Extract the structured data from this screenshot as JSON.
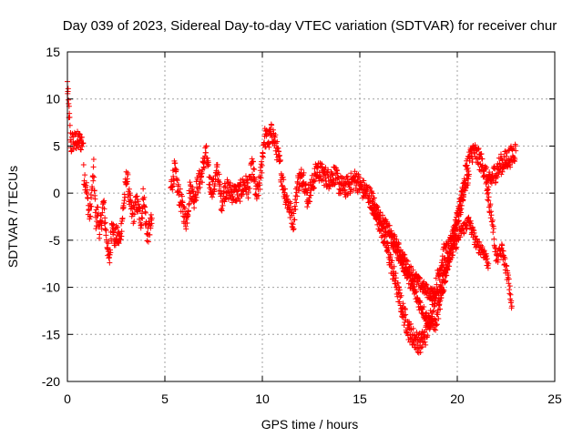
{
  "chart_data": {
    "type": "scatter",
    "title": "Day 039 of 2023, Sidereal Day-to-day VTEC variation (SDTVAR) for receiver chur",
    "xlabel": "GPS time / hours",
    "ylabel": "SDTVAR / TECUs",
    "xlim": [
      0,
      25
    ],
    "ylim": [
      -20,
      15
    ],
    "xticks": [
      0,
      5,
      10,
      15,
      20,
      25
    ],
    "yticks": [
      -20,
      -15,
      -10,
      -5,
      0,
      5,
      10,
      15
    ],
    "grid": true,
    "marker": "+",
    "series": [
      {
        "name": "SDTVAR",
        "color": "#ff0000",
        "anchors": [
          [
            0.0,
            11.5
          ],
          [
            0.05,
            9.5
          ],
          [
            0.1,
            8.0
          ],
          [
            0.15,
            6.0
          ],
          [
            0.2,
            5.0
          ],
          [
            0.25,
            5.5
          ],
          [
            0.3,
            5.5
          ],
          [
            0.8,
            5.5
          ],
          [
            0.85,
            2.0
          ],
          [
            0.95,
            1.0
          ],
          [
            1.05,
            -1.0
          ],
          [
            1.15,
            -2.5
          ],
          [
            1.25,
            0.0
          ],
          [
            1.35,
            2.5
          ],
          [
            1.45,
            -3.0
          ],
          [
            1.55,
            -2.0
          ],
          [
            1.65,
            -4.0
          ],
          [
            1.75,
            -3.0
          ],
          [
            1.85,
            -1.0
          ],
          [
            1.95,
            -3.5
          ],
          [
            2.15,
            -7.5
          ],
          [
            2.3,
            -2.5
          ],
          [
            2.4,
            -5.0
          ],
          [
            2.5,
            -4.5
          ],
          [
            2.7,
            -5.0
          ],
          [
            3.05,
            2.0
          ],
          [
            3.2,
            -1.0
          ],
          [
            3.35,
            -2.5
          ],
          [
            3.55,
            -1.0
          ],
          [
            3.8,
            -3.0
          ],
          [
            3.9,
            0.0
          ],
          [
            4.0,
            -2.5
          ],
          [
            4.1,
            -4.5
          ],
          [
            4.35,
            -3.0
          ],
          [
            5.3,
            0.5
          ],
          [
            5.5,
            2.5
          ],
          [
            5.7,
            0.0
          ],
          [
            5.9,
            -1.5
          ],
          [
            6.1,
            -3.0
          ],
          [
            6.3,
            0.5
          ],
          [
            6.5,
            -0.5
          ],
          [
            6.7,
            1.0
          ],
          [
            6.9,
            2.0
          ],
          [
            7.1,
            4.5
          ],
          [
            7.3,
            1.0
          ],
          [
            7.5,
            0.5
          ],
          [
            7.7,
            2.5
          ],
          [
            7.9,
            -1.0
          ],
          [
            8.1,
            0.5
          ],
          [
            8.5,
            0.0
          ],
          [
            8.8,
            0.0
          ],
          [
            9.1,
            1.0
          ],
          [
            9.3,
            0.5
          ],
          [
            9.5,
            3.0
          ],
          [
            9.7,
            -0.5
          ],
          [
            9.9,
            1.5
          ],
          [
            10.1,
            6.0
          ],
          [
            10.3,
            5.5
          ],
          [
            10.5,
            6.5
          ],
          [
            10.7,
            5.0
          ],
          [
            10.9,
            3.0
          ],
          [
            11.1,
            0.5
          ],
          [
            11.3,
            -1.0
          ],
          [
            11.6,
            -3.0
          ],
          [
            11.8,
            1.0
          ],
          [
            12.1,
            2.0
          ],
          [
            12.3,
            -0.5
          ],
          [
            12.5,
            0.5
          ],
          [
            12.8,
            2.5
          ],
          [
            13.1,
            2.0
          ],
          [
            13.4,
            1.5
          ],
          [
            13.7,
            2.0
          ],
          [
            13.9,
            1.0
          ],
          [
            14.2,
            0.5
          ],
          [
            14.5,
            1.0
          ],
          [
            14.8,
            1.5
          ],
          [
            15.1,
            0.5
          ],
          [
            15.4,
            0.0
          ],
          [
            15.7,
            -1.0
          ],
          [
            16.0,
            -3.0
          ],
          [
            16.3,
            -5.0
          ],
          [
            16.6,
            -7.5
          ],
          [
            16.9,
            -10.0
          ],
          [
            17.2,
            -12.5
          ],
          [
            17.5,
            -14.5
          ],
          [
            17.8,
            -15.5
          ],
          [
            18.1,
            -16.0
          ],
          [
            18.4,
            -15.0
          ],
          [
            18.7,
            -12.5
          ],
          [
            19.0,
            -9.0
          ],
          [
            19.3,
            -6.5
          ],
          [
            19.6,
            -6.0
          ],
          [
            19.9,
            -4.0
          ],
          [
            20.2,
            -1.0
          ],
          [
            20.5,
            3.0
          ],
          [
            20.8,
            4.5
          ],
          [
            21.0,
            4.0
          ],
          [
            21.3,
            3.0
          ],
          [
            21.6,
            1.0
          ],
          [
            21.9,
            2.0
          ],
          [
            22.2,
            3.0
          ],
          [
            22.5,
            3.5
          ],
          [
            22.8,
            4.0
          ],
          [
            23.0,
            4.5
          ]
        ],
        "branches": [
          [
            [
              15.6,
              -1.5
            ],
            [
              16.0,
              -2.5
            ],
            [
              16.5,
              -4.0
            ],
            [
              17.0,
              -6.0
            ],
            [
              17.5,
              -8.0
            ],
            [
              18.0,
              -9.5
            ],
            [
              18.5,
              -10.5
            ],
            [
              19.0,
              -11.0
            ],
            [
              19.4,
              -8.0
            ],
            [
              19.8,
              -6.0
            ],
            [
              20.2,
              -4.0
            ],
            [
              20.6,
              -3.0
            ],
            [
              21.0,
              -5.5
            ],
            [
              21.3,
              -6.0
            ],
            [
              21.6,
              -7.5
            ]
          ],
          [
            [
              16.6,
              -5.0
            ],
            [
              17.0,
              -6.5
            ],
            [
              17.5,
              -9.0
            ],
            [
              18.0,
              -11.5
            ],
            [
              18.5,
              -13.5
            ],
            [
              18.9,
              -14.0
            ],
            [
              19.3,
              -10.0
            ],
            [
              19.7,
              -5.0
            ],
            [
              20.0,
              -2.5
            ],
            [
              20.3,
              0.0
            ],
            [
              20.6,
              2.0
            ]
          ],
          [
            [
              21.5,
              0.5
            ],
            [
              21.8,
              -3.0
            ],
            [
              22.0,
              -7.0
            ],
            [
              22.3,
              -6.0
            ],
            [
              22.6,
              -9.0
            ],
            [
              22.8,
              -12.0
            ]
          ]
        ]
      }
    ]
  }
}
